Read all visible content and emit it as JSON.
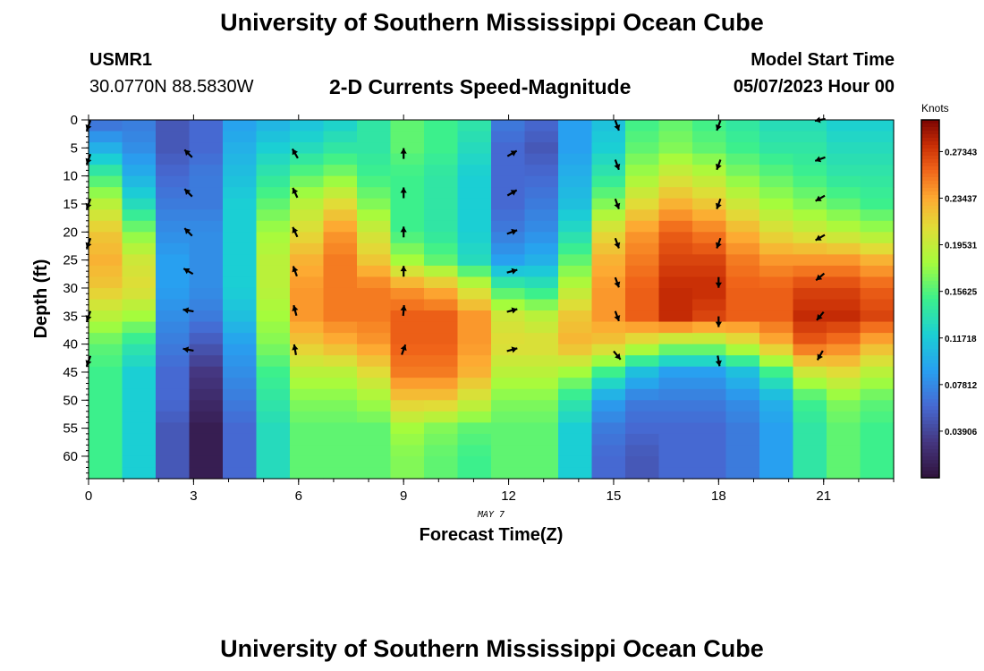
{
  "page": {
    "title_top": "University of Southern Mississippi Ocean Cube",
    "title_bottom": "University of Southern Mississippi Ocean Cube",
    "station_id": "USMR1",
    "coordinates": "30.0770N  88.5830W",
    "model_start_label": "Model Start Time",
    "model_start_value": "05/07/2023 Hour 00"
  },
  "chart_data": {
    "type": "heatmap",
    "title": "2-D Currents Speed-Magnitude",
    "xlabel": "Forecast Time(Z)",
    "ylabel": "Depth (ft)",
    "date_label": "MAY 7",
    "colorbar_unit": "Knots",
    "x_ticks": [
      0,
      3,
      6,
      9,
      12,
      15,
      18,
      21
    ],
    "x_range": [
      0,
      23
    ],
    "y_ticks": [
      0,
      5,
      10,
      15,
      20,
      25,
      30,
      35,
      40,
      45,
      50,
      55,
      60
    ],
    "y_range": [
      0,
      64
    ],
    "colorbar_ticks": [
      "0.27343",
      "0.23437",
      "0.19531",
      "0.15625",
      "0.11718",
      "0.07812",
      "0.03906"
    ],
    "colorbar_tick_values": [
      0.27343,
      0.23437,
      0.19531,
      0.15625,
      0.11718,
      0.07812,
      0.03906
    ],
    "value_range": [
      0.0,
      0.3
    ],
    "hours": [
      0,
      1,
      2,
      3,
      4,
      5,
      6,
      7,
      8,
      9,
      10,
      11,
      12,
      13,
      14,
      15,
      16,
      17,
      18,
      19,
      20,
      21,
      22,
      23
    ],
    "depth_profile_ft": [
      0,
      5,
      10,
      15,
      20,
      25,
      30,
      35,
      40,
      45,
      50,
      55,
      60,
      64
    ],
    "speed_knots": [
      [
        0.06,
        0.1,
        0.15,
        0.19,
        0.22,
        0.23,
        0.22,
        0.19,
        0.16,
        0.15,
        0.15,
        0.15,
        0.15,
        0.15
      ],
      [
        0.07,
        0.08,
        0.1,
        0.13,
        0.17,
        0.2,
        0.21,
        0.18,
        0.14,
        0.12,
        0.12,
        0.12,
        0.12,
        0.12
      ],
      [
        0.05,
        0.05,
        0.06,
        0.07,
        0.08,
        0.09,
        0.09,
        0.08,
        0.07,
        0.06,
        0.06,
        0.05,
        0.05,
        0.05
      ],
      [
        0.06,
        0.06,
        0.07,
        0.07,
        0.08,
        0.08,
        0.08,
        0.07,
        0.05,
        0.03,
        0.02,
        0.01,
        0.01,
        0.01
      ],
      [
        0.09,
        0.1,
        0.11,
        0.12,
        0.12,
        0.12,
        0.12,
        0.11,
        0.09,
        0.08,
        0.07,
        0.06,
        0.06,
        0.06
      ],
      [
        0.1,
        0.12,
        0.14,
        0.16,
        0.18,
        0.19,
        0.19,
        0.18,
        0.17,
        0.15,
        0.14,
        0.13,
        0.13,
        0.13
      ],
      [
        0.11,
        0.13,
        0.16,
        0.19,
        0.21,
        0.23,
        0.24,
        0.24,
        0.22,
        0.19,
        0.17,
        0.16,
        0.16,
        0.16
      ],
      [
        0.12,
        0.14,
        0.17,
        0.21,
        0.24,
        0.25,
        0.25,
        0.25,
        0.23,
        0.19,
        0.17,
        0.16,
        0.16,
        0.16
      ],
      [
        0.14,
        0.14,
        0.15,
        0.17,
        0.2,
        0.22,
        0.25,
        0.25,
        0.24,
        0.21,
        0.18,
        0.16,
        0.16,
        0.16
      ],
      [
        0.16,
        0.16,
        0.15,
        0.15,
        0.15,
        0.18,
        0.24,
        0.26,
        0.26,
        0.25,
        0.22,
        0.18,
        0.17,
        0.17
      ],
      [
        0.15,
        0.15,
        0.14,
        0.14,
        0.14,
        0.16,
        0.23,
        0.26,
        0.26,
        0.25,
        0.22,
        0.17,
        0.16,
        0.16
      ],
      [
        0.14,
        0.13,
        0.12,
        0.12,
        0.12,
        0.13,
        0.2,
        0.24,
        0.24,
        0.23,
        0.2,
        0.16,
        0.15,
        0.15
      ],
      [
        0.07,
        0.06,
        0.06,
        0.06,
        0.07,
        0.09,
        0.15,
        0.2,
        0.21,
        0.19,
        0.17,
        0.16,
        0.16,
        0.16
      ],
      [
        0.06,
        0.05,
        0.06,
        0.07,
        0.08,
        0.1,
        0.14,
        0.19,
        0.21,
        0.19,
        0.17,
        0.16,
        0.16,
        0.16
      ],
      [
        0.09,
        0.09,
        0.1,
        0.11,
        0.13,
        0.16,
        0.19,
        0.22,
        0.23,
        0.18,
        0.14,
        0.12,
        0.12,
        0.12
      ],
      [
        0.11,
        0.12,
        0.14,
        0.17,
        0.21,
        0.23,
        0.24,
        0.24,
        0.22,
        0.15,
        0.09,
        0.07,
        0.06,
        0.06
      ],
      [
        0.15,
        0.16,
        0.18,
        0.21,
        0.24,
        0.25,
        0.26,
        0.26,
        0.2,
        0.11,
        0.07,
        0.06,
        0.05,
        0.05
      ],
      [
        0.16,
        0.17,
        0.2,
        0.23,
        0.26,
        0.27,
        0.28,
        0.28,
        0.18,
        0.09,
        0.07,
        0.06,
        0.06,
        0.06
      ],
      [
        0.15,
        0.16,
        0.19,
        0.22,
        0.25,
        0.27,
        0.28,
        0.27,
        0.18,
        0.09,
        0.07,
        0.06,
        0.06,
        0.06
      ],
      [
        0.14,
        0.15,
        0.17,
        0.2,
        0.23,
        0.25,
        0.26,
        0.26,
        0.2,
        0.11,
        0.08,
        0.07,
        0.07,
        0.07
      ],
      [
        0.13,
        0.14,
        0.16,
        0.18,
        0.21,
        0.24,
        0.26,
        0.26,
        0.23,
        0.15,
        0.1,
        0.09,
        0.09,
        0.09
      ],
      [
        0.13,
        0.14,
        0.15,
        0.17,
        0.2,
        0.24,
        0.27,
        0.28,
        0.26,
        0.2,
        0.15,
        0.14,
        0.14,
        0.14
      ],
      [
        0.12,
        0.13,
        0.14,
        0.16,
        0.19,
        0.24,
        0.27,
        0.28,
        0.25,
        0.21,
        0.17,
        0.16,
        0.16,
        0.16
      ],
      [
        0.12,
        0.13,
        0.14,
        0.15,
        0.18,
        0.23,
        0.26,
        0.27,
        0.23,
        0.19,
        0.16,
        0.15,
        0.15,
        0.15
      ]
    ],
    "vector_depths_ft": [
      6,
      13,
      20,
      27,
      34,
      41
    ],
    "vectors": [
      {
        "hour": 0,
        "depths_ft": [
          1,
          7,
          15,
          22,
          35,
          43
        ],
        "dirs_deg": [
          200,
          200,
          200,
          200,
          200,
          200
        ]
      },
      {
        "hour": 2.85,
        "depths_ft": [
          6,
          13,
          20,
          27,
          34,
          41
        ],
        "dirs_deg": [
          315,
          315,
          315,
          300,
          280,
          280
        ]
      },
      {
        "hour": 5.9,
        "depths_ft": [
          6,
          13,
          20,
          27,
          34,
          41
        ],
        "dirs_deg": [
          330,
          335,
          335,
          340,
          345,
          350
        ]
      },
      {
        "hour": 9.0,
        "depths_ft": [
          6,
          13,
          20,
          27,
          34,
          41
        ],
        "dirs_deg": [
          0,
          0,
          0,
          0,
          5,
          20
        ]
      },
      {
        "hour": 12.1,
        "depths_ft": [
          6,
          13,
          20,
          27,
          34,
          41
        ],
        "dirs_deg": [
          60,
          60,
          70,
          75,
          75,
          75
        ]
      },
      {
        "hour": 15.1,
        "depths_ft": [
          1,
          8,
          15,
          22,
          29,
          35,
          42
        ],
        "dirs_deg": [
          160,
          160,
          160,
          160,
          160,
          160,
          140
        ]
      },
      {
        "hour": 18.0,
        "depths_ft": [
          1,
          8,
          15,
          22,
          29,
          36,
          43
        ],
        "dirs_deg": [
          200,
          200,
          200,
          200,
          180,
          180,
          170
        ]
      },
      {
        "hour": 20.9,
        "depths_ft": [
          0,
          7,
          14,
          21,
          28,
          35,
          42
        ],
        "dirs_deg": [
          260,
          250,
          240,
          240,
          230,
          220,
          210
        ]
      }
    ]
  }
}
